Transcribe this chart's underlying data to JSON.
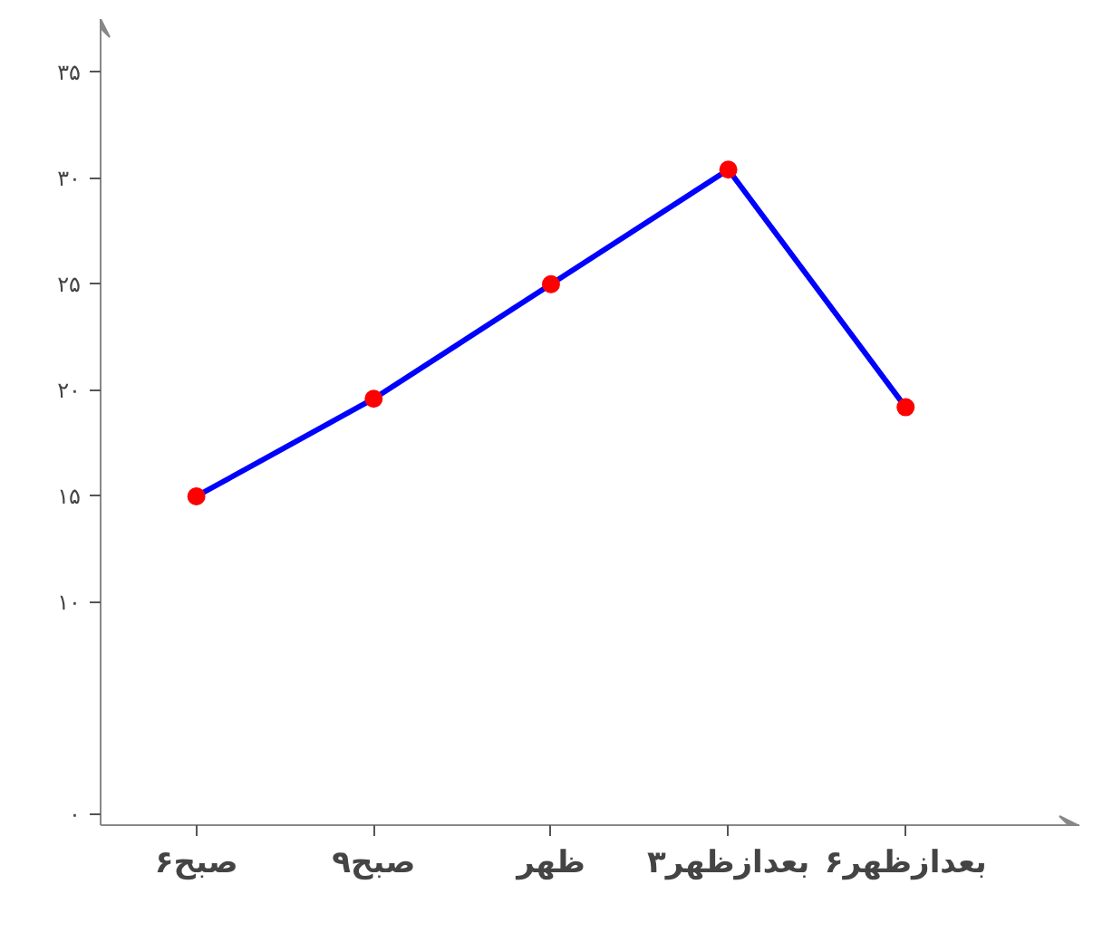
{
  "chart_data": {
    "type": "line",
    "categories": [
      "۶صبح",
      "۹صبح",
      "ظهر",
      "۳بعدازظهر",
      "۶بعدازظهر"
    ],
    "series": [
      {
        "color": "#0000ff",
        "values": [
          15,
          19.6,
          25,
          30.4,
          19.2
        ]
      }
    ],
    "colors": [
      "#ff0000",
      "#ff0000",
      "#ff0000",
      "#ff0000",
      "#ff0000"
    ],
    "marker": "circle",
    "line_style": "solid",
    "grid": false,
    "ylim": [
      -0.5,
      37.5
    ],
    "yticks": [
      {
        "value": 0,
        "label": "۰"
      },
      {
        "value": 10,
        "label": "۱۰"
      },
      {
        "value": 15,
        "label": "۱۵"
      },
      {
        "value": 20,
        "label": "۲۰"
      },
      {
        "value": 25,
        "label": "۲۵"
      },
      {
        "value": 30,
        "label": "۳۰"
      },
      {
        "value": 35,
        "label": "۳۵"
      }
    ]
  }
}
